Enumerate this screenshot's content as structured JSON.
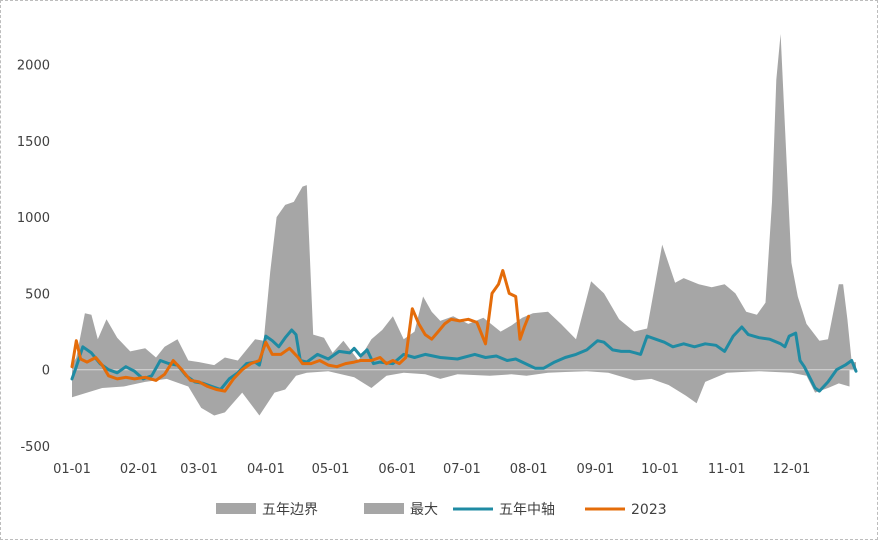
{
  "chart_data": {
    "type": "area",
    "title": "",
    "xlabel": "",
    "ylabel": "",
    "ylim": [
      -500,
      2200
    ],
    "y_ticks": [
      -500,
      0,
      500,
      1000,
      1500,
      2000
    ],
    "x_ticks": [
      "01-01",
      "02-01",
      "03-01",
      "04-01",
      "05-01",
      "06-01",
      "07-01",
      "08-01",
      "09-01",
      "10-01",
      "11-01",
      "12-01"
    ],
    "xlim_day": [
      1,
      365
    ],
    "grid": false,
    "legend_position": "bottom",
    "series": [
      {
        "name": "五年边界",
        "kind": "band",
        "color": "#a6a6a6",
        "points": [
          [
            1,
            -180
          ],
          [
            8,
            -150
          ],
          [
            15,
            -120
          ],
          [
            25,
            -110
          ],
          [
            35,
            -80
          ],
          [
            45,
            -60
          ],
          [
            55,
            -110
          ],
          [
            61,
            -250
          ],
          [
            67,
            -300
          ],
          [
            72,
            -280
          ],
          [
            80,
            -150
          ],
          [
            88,
            -300
          ],
          [
            95,
            -150
          ],
          [
            100,
            -130
          ],
          [
            105,
            -40
          ],
          [
            110,
            -20
          ],
          [
            120,
            -10
          ],
          [
            132,
            -50
          ],
          [
            140,
            -120
          ],
          [
            147,
            -40
          ],
          [
            155,
            -20
          ],
          [
            165,
            -30
          ],
          [
            172,
            -60
          ],
          [
            180,
            -30
          ],
          [
            195,
            -40
          ],
          [
            205,
            -30
          ],
          [
            212,
            -40
          ],
          [
            222,
            -20
          ],
          [
            230,
            -15
          ],
          [
            240,
            -10
          ],
          [
            250,
            -20
          ],
          [
            262,
            -70
          ],
          [
            270,
            -60
          ],
          [
            278,
            -100
          ],
          [
            286,
            -170
          ],
          [
            291,
            -220
          ],
          [
            295,
            -80
          ],
          [
            305,
            -20
          ],
          [
            312,
            -15
          ],
          [
            320,
            -10
          ],
          [
            335,
            -20
          ],
          [
            342,
            -40
          ],
          [
            346,
            -150
          ],
          [
            352,
            -120
          ],
          [
            357,
            -90
          ],
          [
            362,
            -110
          ]
        ]
      },
      {
        "name": "最大",
        "kind": "band",
        "color": "#a6a6a6",
        "points": [
          [
            1,
            30
          ],
          [
            3,
            80
          ],
          [
            7,
            370
          ],
          [
            10,
            360
          ],
          [
            13,
            200
          ],
          [
            17,
            330
          ],
          [
            22,
            210
          ],
          [
            28,
            120
          ],
          [
            35,
            140
          ],
          [
            40,
            80
          ],
          [
            44,
            150
          ],
          [
            50,
            200
          ],
          [
            55,
            60
          ],
          [
            60,
            50
          ],
          [
            67,
            30
          ],
          [
            72,
            80
          ],
          [
            78,
            60
          ],
          [
            86,
            200
          ],
          [
            90,
            190
          ],
          [
            93,
            640
          ],
          [
            96,
            1000
          ],
          [
            100,
            1080
          ],
          [
            104,
            1100
          ],
          [
            108,
            1200
          ],
          [
            110,
            1210
          ],
          [
            113,
            230
          ],
          [
            118,
            210
          ],
          [
            122,
            110
          ],
          [
            127,
            190
          ],
          [
            134,
            60
          ],
          [
            140,
            200
          ],
          [
            145,
            260
          ],
          [
            150,
            350
          ],
          [
            155,
            200
          ],
          [
            160,
            250
          ],
          [
            164,
            480
          ],
          [
            168,
            380
          ],
          [
            172,
            320
          ],
          [
            178,
            350
          ],
          [
            185,
            300
          ],
          [
            192,
            340
          ],
          [
            200,
            250
          ],
          [
            205,
            290
          ],
          [
            210,
            340
          ],
          [
            215,
            370
          ],
          [
            222,
            380
          ],
          [
            228,
            300
          ],
          [
            235,
            200
          ],
          [
            242,
            580
          ],
          [
            248,
            500
          ],
          [
            255,
            330
          ],
          [
            262,
            250
          ],
          [
            268,
            270
          ],
          [
            275,
            820
          ],
          [
            281,
            570
          ],
          [
            285,
            600
          ],
          [
            292,
            560
          ],
          [
            298,
            540
          ],
          [
            304,
            560
          ],
          [
            309,
            500
          ],
          [
            314,
            380
          ],
          [
            319,
            360
          ],
          [
            323,
            440
          ],
          [
            326,
            1100
          ],
          [
            328,
            1900
          ],
          [
            330,
            2200
          ],
          [
            332,
            1600
          ],
          [
            335,
            700
          ],
          [
            338,
            480
          ],
          [
            342,
            300
          ],
          [
            348,
            190
          ],
          [
            352,
            200
          ],
          [
            357,
            560
          ],
          [
            359,
            560
          ],
          [
            361,
            330
          ],
          [
            363,
            50
          ],
          [
            365,
            50
          ]
        ]
      },
      {
        "name": "五年中轴",
        "kind": "line",
        "color": "#1f8ba3",
        "points": [
          [
            1,
            -60
          ],
          [
            3,
            20
          ],
          [
            6,
            150
          ],
          [
            10,
            110
          ],
          [
            14,
            40
          ],
          [
            18,
            0
          ],
          [
            22,
            -20
          ],
          [
            26,
            20
          ],
          [
            30,
            -10
          ],
          [
            34,
            -60
          ],
          [
            38,
            -40
          ],
          [
            42,
            60
          ],
          [
            46,
            40
          ],
          [
            50,
            30
          ],
          [
            54,
            -40
          ],
          [
            58,
            -80
          ],
          [
            62,
            -90
          ],
          [
            66,
            -110
          ],
          [
            70,
            -130
          ],
          [
            74,
            -60
          ],
          [
            78,
            -20
          ],
          [
            82,
            40
          ],
          [
            86,
            50
          ],
          [
            88,
            30
          ],
          [
            91,
            220
          ],
          [
            94,
            190
          ],
          [
            97,
            150
          ],
          [
            100,
            210
          ],
          [
            103,
            260
          ],
          [
            105,
            230
          ],
          [
            107,
            60
          ],
          [
            110,
            50
          ],
          [
            115,
            100
          ],
          [
            120,
            70
          ],
          [
            125,
            120
          ],
          [
            130,
            110
          ],
          [
            132,
            140
          ],
          [
            135,
            90
          ],
          [
            138,
            130
          ],
          [
            141,
            40
          ],
          [
            144,
            50
          ],
          [
            150,
            40
          ],
          [
            155,
            100
          ],
          [
            160,
            80
          ],
          [
            165,
            100
          ],
          [
            172,
            80
          ],
          [
            180,
            70
          ],
          [
            188,
            100
          ],
          [
            193,
            80
          ],
          [
            198,
            90
          ],
          [
            203,
            60
          ],
          [
            207,
            70
          ],
          [
            213,
            30
          ],
          [
            216,
            10
          ],
          [
            220,
            10
          ],
          [
            225,
            50
          ],
          [
            230,
            80
          ],
          [
            235,
            100
          ],
          [
            240,
            130
          ],
          [
            245,
            190
          ],
          [
            248,
            180
          ],
          [
            252,
            130
          ],
          [
            256,
            120
          ],
          [
            260,
            120
          ],
          [
            265,
            100
          ],
          [
            268,
            220
          ],
          [
            272,
            200
          ],
          [
            276,
            180
          ],
          [
            280,
            150
          ],
          [
            285,
            170
          ],
          [
            290,
            150
          ],
          [
            295,
            170
          ],
          [
            300,
            160
          ],
          [
            304,
            120
          ],
          [
            308,
            220
          ],
          [
            312,
            280
          ],
          [
            315,
            230
          ],
          [
            320,
            210
          ],
          [
            325,
            200
          ],
          [
            330,
            170
          ],
          [
            332,
            150
          ],
          [
            334,
            220
          ],
          [
            337,
            240
          ],
          [
            339,
            60
          ],
          [
            341,
            20
          ],
          [
            346,
            -120
          ],
          [
            348,
            -140
          ],
          [
            352,
            -80
          ],
          [
            356,
            0
          ],
          [
            360,
            30
          ],
          [
            363,
            60
          ],
          [
            365,
            -10
          ]
        ]
      },
      {
        "name": "2023",
        "kind": "line",
        "color": "#e46c0a",
        "points": [
          [
            1,
            20
          ],
          [
            3,
            190
          ],
          [
            5,
            70
          ],
          [
            8,
            50
          ],
          [
            12,
            80
          ],
          [
            15,
            30
          ],
          [
            18,
            -40
          ],
          [
            22,
            -60
          ],
          [
            26,
            -50
          ],
          [
            30,
            -60
          ],
          [
            35,
            -50
          ],
          [
            40,
            -70
          ],
          [
            44,
            -30
          ],
          [
            48,
            60
          ],
          [
            52,
            0
          ],
          [
            56,
            -70
          ],
          [
            60,
            -80
          ],
          [
            64,
            -110
          ],
          [
            68,
            -130
          ],
          [
            72,
            -140
          ],
          [
            76,
            -60
          ],
          [
            80,
            0
          ],
          [
            84,
            40
          ],
          [
            88,
            60
          ],
          [
            91,
            180
          ],
          [
            94,
            100
          ],
          [
            98,
            100
          ],
          [
            102,
            140
          ],
          [
            106,
            80
          ],
          [
            108,
            40
          ],
          [
            112,
            40
          ],
          [
            116,
            60
          ],
          [
            120,
            30
          ],
          [
            124,
            20
          ],
          [
            128,
            40
          ],
          [
            132,
            50
          ],
          [
            135,
            60
          ],
          [
            140,
            60
          ],
          [
            144,
            80
          ],
          [
            147,
            40
          ],
          [
            150,
            60
          ],
          [
            153,
            40
          ],
          [
            156,
            80
          ],
          [
            159,
            400
          ],
          [
            162,
            300
          ],
          [
            165,
            230
          ],
          [
            168,
            200
          ],
          [
            171,
            250
          ],
          [
            174,
            300
          ],
          [
            177,
            330
          ],
          [
            181,
            320
          ],
          [
            185,
            330
          ],
          [
            189,
            310
          ],
          [
            193,
            170
          ],
          [
            196,
            500
          ],
          [
            199,
            560
          ],
          [
            201,
            650
          ],
          [
            204,
            500
          ],
          [
            207,
            480
          ],
          [
            209,
            200
          ],
          [
            211,
            280
          ],
          [
            213,
            350
          ]
        ]
      }
    ]
  },
  "legend": [
    {
      "label": "五年边界",
      "kind": "band",
      "color": "#a6a6a6"
    },
    {
      "label": "最大",
      "kind": "band",
      "color": "#a6a6a6"
    },
    {
      "label": "五年中轴",
      "kind": "line",
      "color": "#1f8ba3"
    },
    {
      "label": "2023",
      "kind": "line",
      "color": "#e46c0a"
    }
  ]
}
